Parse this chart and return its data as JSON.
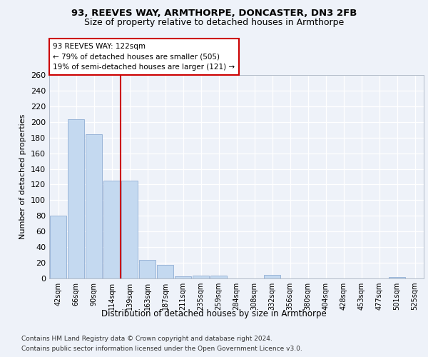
{
  "title1": "93, REEVES WAY, ARMTHORPE, DONCASTER, DN3 2FB",
  "title2": "Size of property relative to detached houses in Armthorpe",
  "xlabel": "Distribution of detached houses by size in Armthorpe",
  "ylabel": "Number of detached properties",
  "categories": [
    "42sqm",
    "66sqm",
    "90sqm",
    "114sqm",
    "139sqm",
    "163sqm",
    "187sqm",
    "211sqm",
    "235sqm",
    "259sqm",
    "284sqm",
    "308sqm",
    "332sqm",
    "356sqm",
    "380sqm",
    "404sqm",
    "428sqm",
    "453sqm",
    "477sqm",
    "501sqm",
    "525sqm"
  ],
  "values": [
    80,
    203,
    184,
    125,
    125,
    24,
    17,
    3,
    4,
    4,
    0,
    0,
    5,
    0,
    0,
    0,
    0,
    0,
    0,
    2,
    0
  ],
  "bar_color": "#c4d9f0",
  "bar_edgecolor": "#9ab5d8",
  "vline_x": 3.5,
  "annotation_line1": "93 REEVES WAY: 122sqm",
  "annotation_line2": "← 79% of detached houses are smaller (505)",
  "annotation_line3": "19% of semi-detached houses are larger (121) →",
  "vline_color": "#cc0000",
  "ylim": [
    0,
    260
  ],
  "yticks": [
    0,
    20,
    40,
    60,
    80,
    100,
    120,
    140,
    160,
    180,
    200,
    220,
    240,
    260
  ],
  "footer1": "Contains HM Land Registry data © Crown copyright and database right 2024.",
  "footer2": "Contains public sector information licensed under the Open Government Licence v3.0.",
  "bg_color": "#eef2f9",
  "grid_color": "#d0d8e8"
}
